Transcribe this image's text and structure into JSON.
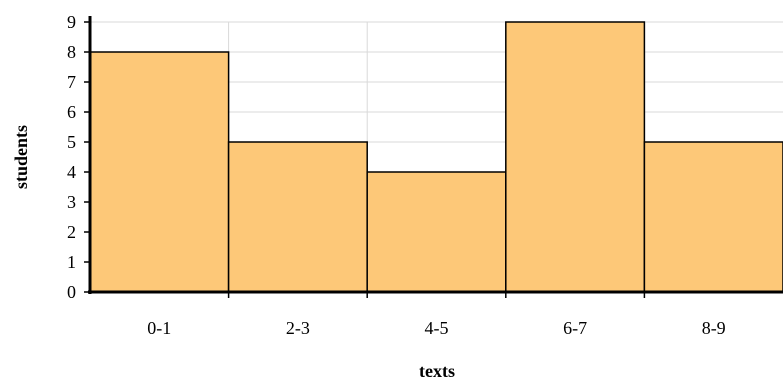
{
  "chart_data": {
    "type": "bar",
    "title": "",
    "xlabel": "texts",
    "ylabel": "students",
    "categories": [
      "0-1",
      "2-3",
      "4-5",
      "6-7",
      "8-9"
    ],
    "values": [
      8,
      5,
      4,
      9,
      5
    ],
    "ylim": [
      0,
      9
    ],
    "yticks": [
      0,
      1,
      2,
      3,
      4,
      5,
      6,
      7,
      8,
      9
    ],
    "grid": true,
    "bar_color": "#fdc878",
    "bar_edge_color": "#000000",
    "grid_color": "#d9d9d9"
  }
}
